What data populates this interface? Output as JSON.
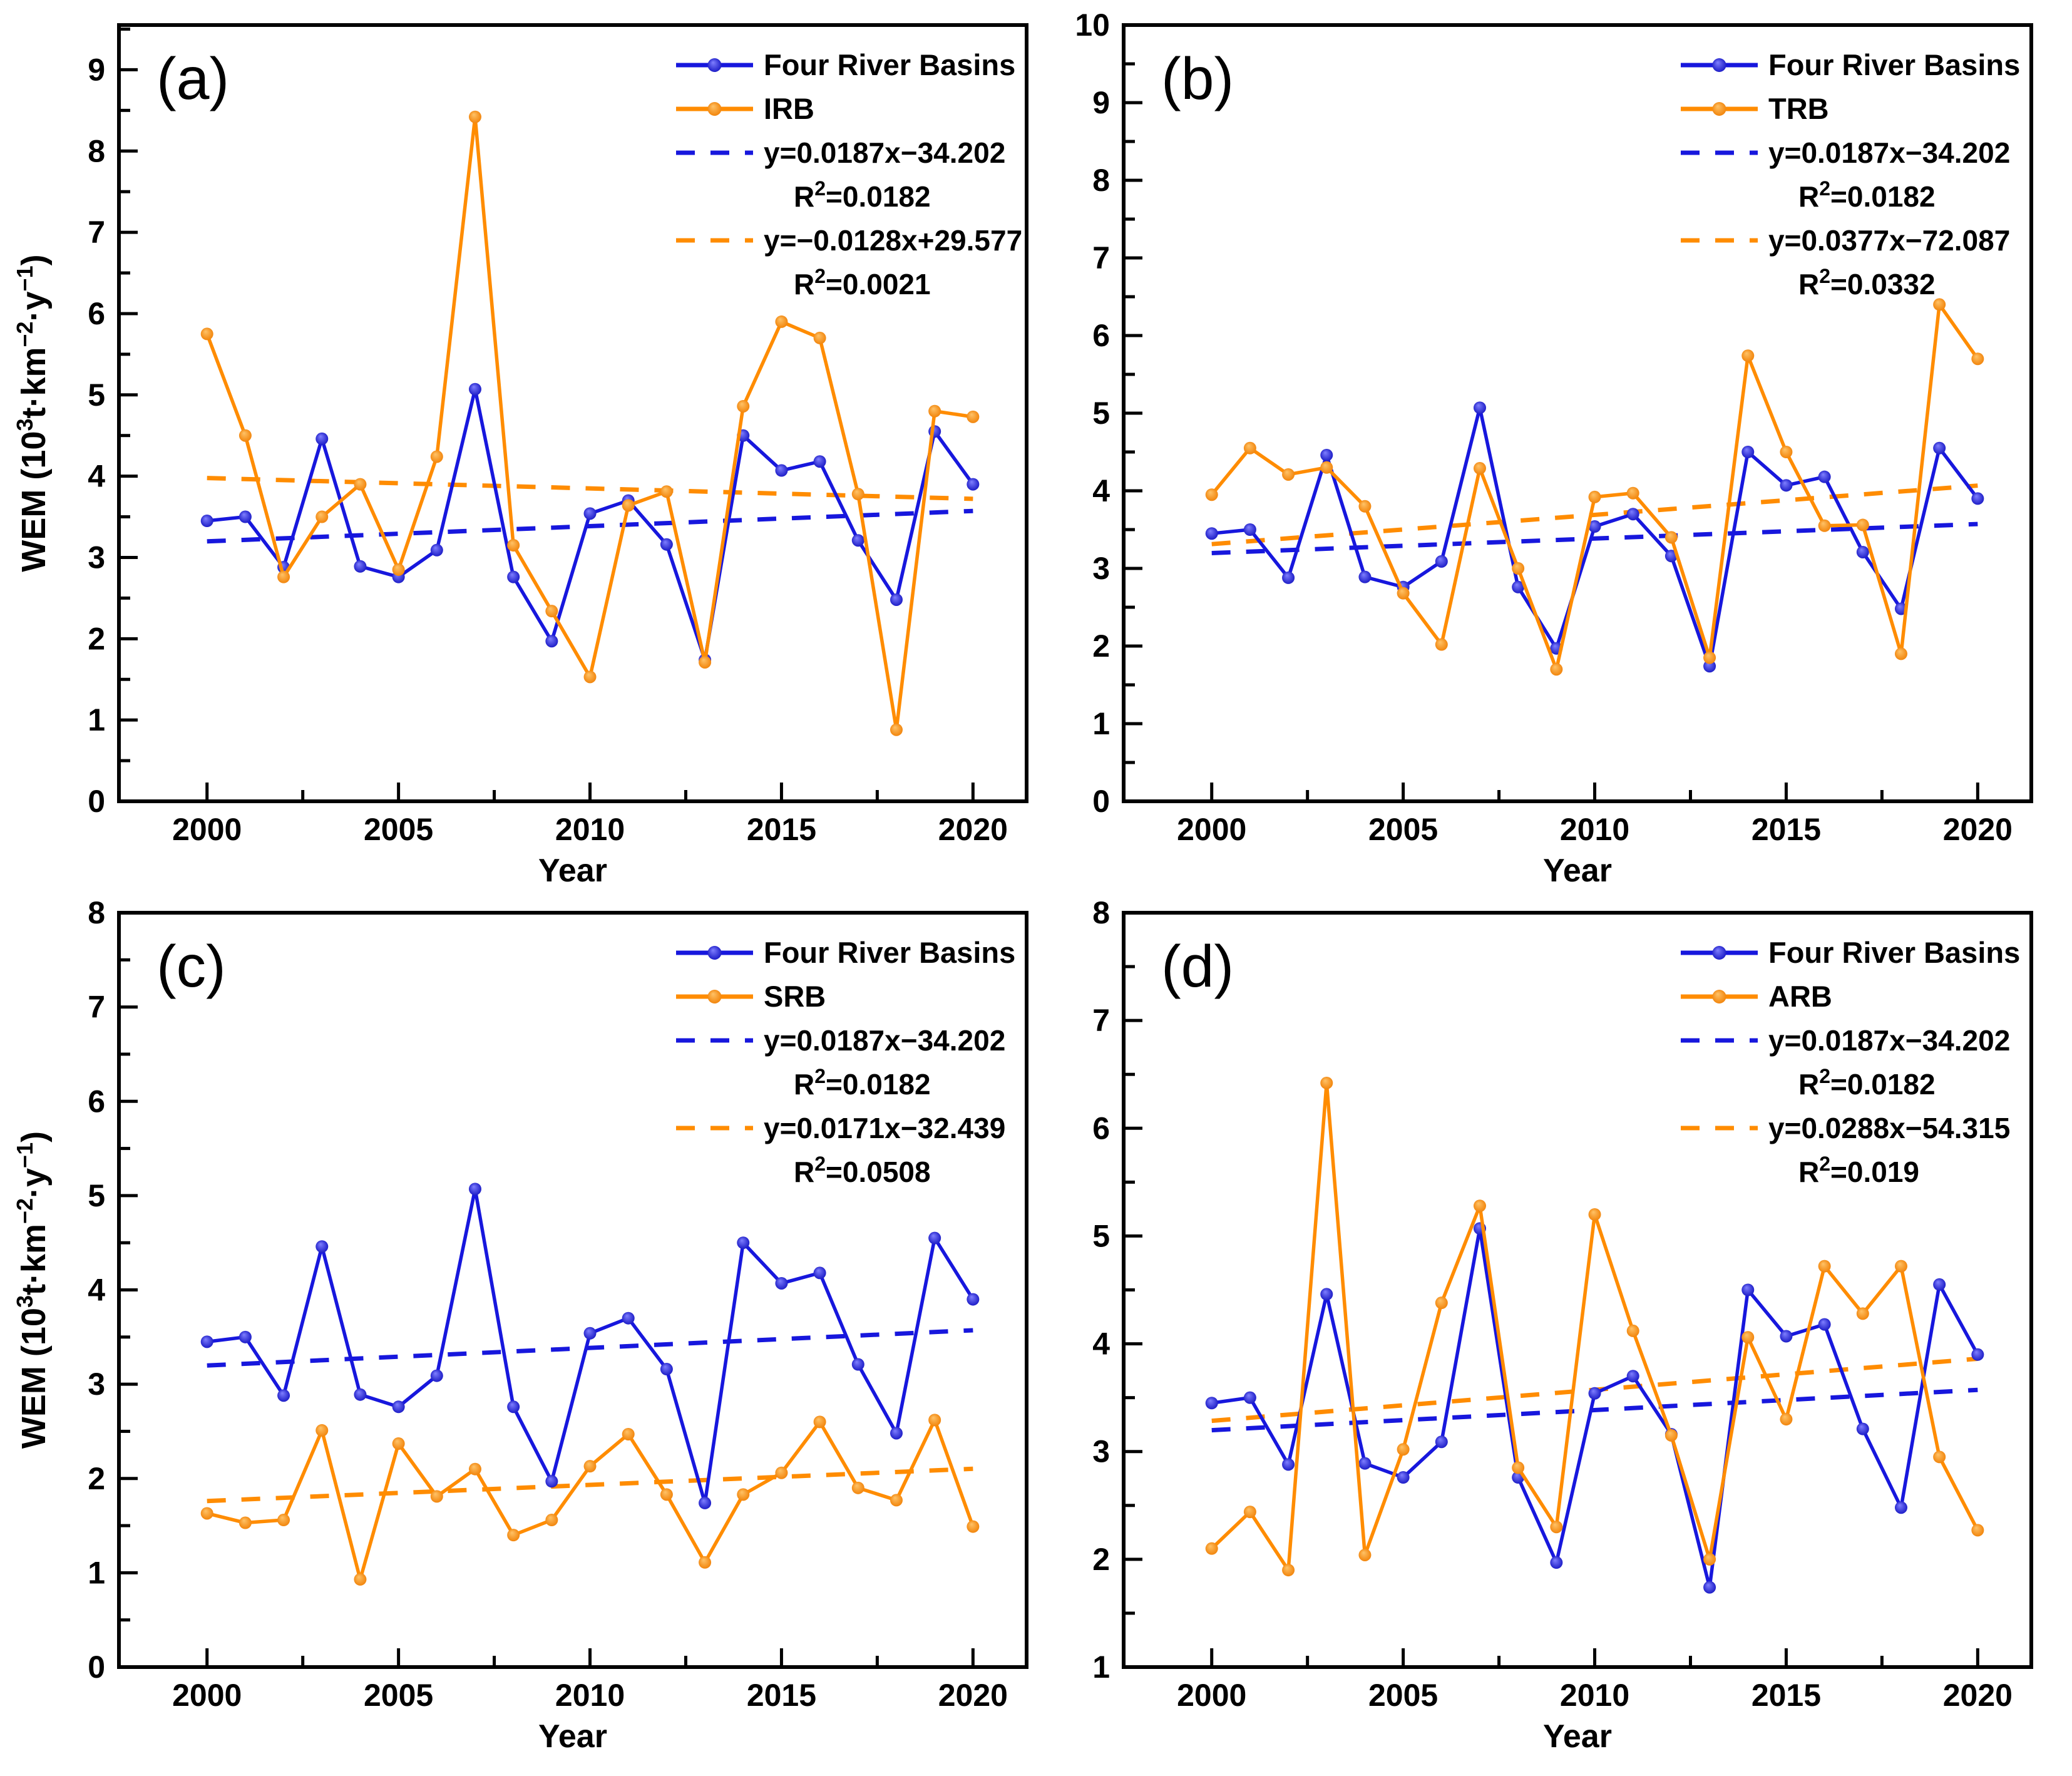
{
  "figure": {
    "background": "#ffffff",
    "x_axis_title": "Year",
    "y_axis_title_parts": [
      {
        "t": "WEM (10"
      },
      {
        "t": "3",
        "sup": true
      },
      {
        "t": "t·km"
      },
      {
        "t": "−2",
        "sup": true
      },
      {
        "t": "·y"
      },
      {
        "t": "−1",
        "sup": true
      },
      {
        "t": ")"
      }
    ]
  },
  "colors": {
    "series_blue": "#1717dd",
    "series_orange": "#ff8c00",
    "marker_blue_light": "#8080ff",
    "marker_blue_dark": "#1010c0",
    "marker_orange_light": "#ffc368",
    "marker_orange_dark": "#f07d00",
    "axis": "#000000"
  },
  "chart_data": [
    {
      "panel_label": "(a)",
      "type": "line",
      "xlabel": "Year",
      "x": [
        2000,
        2001,
        2002,
        2003,
        2004,
        2005,
        2006,
        2007,
        2008,
        2009,
        2010,
        2011,
        2012,
        2013,
        2014,
        2015,
        2016,
        2017,
        2018,
        2019,
        2020
      ],
      "xticks": [
        2000,
        2005,
        2010,
        2015,
        2020
      ],
      "xlim": [
        1997.7,
        2021.4
      ],
      "ylim": [
        0,
        9.55
      ],
      "yticks": [
        0,
        1,
        2,
        3,
        4,
        5,
        6,
        7,
        8,
        9
      ],
      "show_y_title": true,
      "series": [
        {
          "name": "Four River Basins",
          "color": "blue",
          "values": [
            3.45,
            3.5,
            2.88,
            4.46,
            2.89,
            2.76,
            3.09,
            5.07,
            2.76,
            1.97,
            3.54,
            3.7,
            3.16,
            1.74,
            4.5,
            4.07,
            4.18,
            3.21,
            2.48,
            4.55,
            3.9
          ]
        },
        {
          "name": "IRB",
          "color": "orange",
          "values": [
            5.75,
            4.5,
            2.76,
            3.5,
            3.9,
            2.85,
            4.24,
            8.42,
            3.15,
            2.34,
            1.53,
            3.64,
            3.81,
            1.71,
            4.86,
            5.9,
            5.7,
            3.78,
            0.88,
            4.8,
            4.73
          ]
        }
      ],
      "trendlines": [
        {
          "color": "blue",
          "slope": 0.0187,
          "intercept": -34.202,
          "equation_label": "y=0.0187x−34.202",
          "r2_parts": [
            {
              "t": "R"
            },
            {
              "t": "2",
              "sup": true
            },
            {
              "t": "=0.0182"
            }
          ]
        },
        {
          "color": "orange",
          "slope": -0.0128,
          "intercept": 29.577,
          "equation_label": "y=−0.0128x+29.577",
          "r2_parts": [
            {
              "t": "R"
            },
            {
              "t": "2",
              "sup": true
            },
            {
              "t": "=0.0021"
            }
          ]
        }
      ]
    },
    {
      "panel_label": "(b)",
      "type": "line",
      "xlabel": "Year",
      "x": [
        2000,
        2001,
        2002,
        2003,
        2004,
        2005,
        2006,
        2007,
        2008,
        2009,
        2010,
        2011,
        2012,
        2013,
        2014,
        2015,
        2016,
        2017,
        2018,
        2019,
        2020
      ],
      "xticks": [
        2000,
        2005,
        2010,
        2015,
        2020
      ],
      "xlim": [
        1997.7,
        2021.4
      ],
      "ylim": [
        0,
        10
      ],
      "yticks": [
        0,
        1,
        2,
        3,
        4,
        5,
        6,
        7,
        8,
        9,
        10
      ],
      "show_y_title": false,
      "series": [
        {
          "name": "Four River Basins",
          "color": "blue",
          "values": [
            3.45,
            3.5,
            2.88,
            4.46,
            2.89,
            2.76,
            3.09,
            5.07,
            2.76,
            1.97,
            3.54,
            3.7,
            3.16,
            1.74,
            4.5,
            4.07,
            4.18,
            3.21,
            2.48,
            4.55,
            3.9
          ]
        },
        {
          "name": "TRB",
          "color": "orange",
          "values": [
            3.95,
            4.55,
            4.21,
            4.3,
            3.8,
            2.68,
            2.02,
            4.29,
            3.0,
            1.7,
            3.92,
            3.97,
            3.4,
            1.85,
            5.74,
            4.5,
            3.55,
            3.56,
            1.9,
            6.4,
            5.7
          ]
        }
      ],
      "trendlines": [
        {
          "color": "blue",
          "slope": 0.0187,
          "intercept": -34.202,
          "equation_label": "y=0.0187x−34.202",
          "r2_parts": [
            {
              "t": "R"
            },
            {
              "t": "2",
              "sup": true
            },
            {
              "t": "=0.0182"
            }
          ]
        },
        {
          "color": "orange",
          "slope": 0.0377,
          "intercept": -72.087,
          "equation_label": "y=0.0377x−72.087",
          "r2_parts": [
            {
              "t": "R"
            },
            {
              "t": "2",
              "sup": true
            },
            {
              "t": "=0.0332"
            }
          ]
        }
      ]
    },
    {
      "panel_label": "(c)",
      "type": "line",
      "xlabel": "Year",
      "x": [
        2000,
        2001,
        2002,
        2003,
        2004,
        2005,
        2006,
        2007,
        2008,
        2009,
        2010,
        2011,
        2012,
        2013,
        2014,
        2015,
        2016,
        2017,
        2018,
        2019,
        2020
      ],
      "xticks": [
        2000,
        2005,
        2010,
        2015,
        2020
      ],
      "xlim": [
        1997.7,
        2021.4
      ],
      "ylim": [
        0,
        8
      ],
      "yticks": [
        0,
        1,
        2,
        3,
        4,
        5,
        6,
        7,
        8
      ],
      "show_y_title": true,
      "series": [
        {
          "name": "Four River Basins",
          "color": "blue",
          "values": [
            3.45,
            3.5,
            2.88,
            4.46,
            2.89,
            2.76,
            3.09,
            5.07,
            2.76,
            1.97,
            3.54,
            3.7,
            3.16,
            1.74,
            4.5,
            4.07,
            4.18,
            3.21,
            2.48,
            4.55,
            3.9
          ]
        },
        {
          "name": "SRB",
          "color": "orange",
          "values": [
            1.63,
            1.53,
            1.56,
            2.51,
            0.93,
            2.37,
            1.81,
            2.1,
            1.4,
            1.56,
            2.13,
            2.47,
            1.83,
            1.11,
            1.83,
            2.06,
            2.6,
            1.9,
            1.77,
            2.62,
            1.49
          ]
        }
      ],
      "trendlines": [
        {
          "color": "blue",
          "slope": 0.0187,
          "intercept": -34.202,
          "equation_label": "y=0.0187x−34.202",
          "r2_parts": [
            {
              "t": "R"
            },
            {
              "t": "2",
              "sup": true
            },
            {
              "t": "=0.0182"
            }
          ]
        },
        {
          "color": "orange",
          "slope": 0.0171,
          "intercept": -32.439,
          "equation_label": "y=0.0171x−32.439",
          "r2_parts": [
            {
              "t": "R"
            },
            {
              "t": "2",
              "sup": true
            },
            {
              "t": "=0.0508"
            }
          ]
        }
      ]
    },
    {
      "panel_label": "(d)",
      "type": "line",
      "xlabel": "Year",
      "x": [
        2000,
        2001,
        2002,
        2003,
        2004,
        2005,
        2006,
        2007,
        2008,
        2009,
        2010,
        2011,
        2012,
        2013,
        2014,
        2015,
        2016,
        2017,
        2018,
        2019,
        2020
      ],
      "xticks": [
        2000,
        2005,
        2010,
        2015,
        2020
      ],
      "xlim": [
        1997.7,
        2021.4
      ],
      "ylim": [
        1,
        8
      ],
      "yticks": [
        1,
        2,
        3,
        4,
        5,
        6,
        7,
        8
      ],
      "show_y_title": false,
      "series": [
        {
          "name": "Four River Basins",
          "color": "blue",
          "values": [
            3.45,
            3.5,
            2.88,
            4.46,
            2.89,
            2.76,
            3.09,
            5.07,
            2.76,
            1.97,
            3.54,
            3.7,
            3.16,
            1.74,
            4.5,
            4.07,
            4.18,
            3.21,
            2.48,
            4.55,
            3.9
          ]
        },
        {
          "name": "ARB",
          "color": "orange",
          "values": [
            2.1,
            2.44,
            1.9,
            6.42,
            2.04,
            3.02,
            4.38,
            5.28,
            2.85,
            2.3,
            5.2,
            4.12,
            3.15,
            2.0,
            4.06,
            3.3,
            4.72,
            4.28,
            4.72,
            2.95,
            2.27
          ]
        }
      ],
      "trendlines": [
        {
          "color": "blue",
          "slope": 0.0187,
          "intercept": -34.202,
          "equation_label": "y=0.0187x−34.202",
          "r2_parts": [
            {
              "t": "R"
            },
            {
              "t": "2",
              "sup": true
            },
            {
              "t": "=0.0182"
            }
          ]
        },
        {
          "color": "orange",
          "slope": 0.0288,
          "intercept": -54.315,
          "equation_label": "y=0.0288x−54.315",
          "r2_parts": [
            {
              "t": "R"
            },
            {
              "t": "2",
              "sup": true
            },
            {
              "t": "=0.019"
            }
          ]
        }
      ]
    }
  ]
}
